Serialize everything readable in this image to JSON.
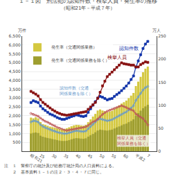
{
  "chart_data": {
    "type": "combo",
    "title": "１－１図　刑法犯の認知件数・検挙人員・発生率の推移",
    "subtitle": "（昭和21年－平成７年）",
    "ylabel": "万件",
    "y2label": "万人",
    "notes": [
      "注　１　警察庁の統計及び総務庁統計局の人口資料による。",
      "　　２　基本資料１－１の注２・３・４・７に同じ。"
    ],
    "categories": [
      "昭和21",
      null,
      null,
      null,
      "25",
      null,
      null,
      null,
      null,
      "30",
      null,
      null,
      null,
      null,
      "35",
      null,
      null,
      null,
      null,
      "40",
      null,
      null,
      null,
      null,
      "45",
      null,
      null,
      null,
      null,
      "50",
      null,
      null,
      null,
      null,
      "55",
      null,
      null,
      null,
      null,
      "60",
      null,
      null,
      null,
      null,
      "平成2",
      null,
      null,
      null,
      null,
      "7"
    ],
    "series": [
      {
        "name": "発生率（交通関係業務）",
        "type": "bar",
        "color": "#d4c840",
        "values": [
          1900,
          1860,
          1920,
          1860,
          1650,
          1530,
          1490,
          1440,
          1390,
          1360,
          1330,
          1290,
          1260,
          1240,
          1250,
          1300,
          1350,
          1410,
          1460,
          1490,
          1480,
          1460,
          1440,
          1490,
          1640,
          1800,
          1960,
          2110,
          2300,
          2360,
          2300,
          2260,
          2200,
          2240,
          2280,
          2380,
          2480,
          2590,
          2690,
          2770,
          2860,
          3000,
          3140,
          3290,
          3680,
          3930,
          4200,
          4460,
          4660,
          4780
        ]
      },
      {
        "name": "発生率（交通関係業務を除く）",
        "type": "bar",
        "color": "#9e9e30",
        "values": [
          1000,
          1040,
          1060,
          1030,
          880,
          820,
          780,
          750,
          720,
          690,
          660,
          630,
          600,
          580,
          580,
          595,
          625,
          675,
          715,
          740,
          730,
          715,
          700,
          730,
          825,
          905,
          975,
          1070,
          1170,
          1220,
          1200,
          1180,
          1165,
          1195,
          1220,
          1285,
          1345,
          1400,
          1460,
          1520,
          1560,
          1640,
          1710,
          1800,
          2010,
          2150,
          2290,
          2430,
          2530,
          2620
        ]
      },
      {
        "name": "認知件数",
        "type": "line",
        "color": "#1133aa",
        "marker": "square",
        "values": [
          2750,
          2850,
          2800,
          2750,
          2550,
          2400,
          2300,
          2200,
          2100,
          2050,
          1980,
          1900,
          1850,
          1800,
          1800,
          1850,
          1900,
          1960,
          2000,
          2050,
          2020,
          1980,
          1960,
          2000,
          2200,
          2400,
          2600,
          2800,
          3000,
          3100,
          3050,
          2980,
          2900,
          2950,
          2980,
          3100,
          3200,
          3300,
          3420,
          3550,
          3680,
          3850,
          4050,
          4250,
          4750,
          5100,
          5450,
          5800,
          6050,
          6200
        ]
      },
      {
        "name": "認知件数（交通\n関係業務を除く）",
        "type": "line",
        "color": "#6699cc",
        "marker": "circle",
        "values": [
          1650,
          1720,
          1700,
          1650,
          1500,
          1400,
          1330,
          1280,
          1220,
          1170,
          1130,
          1080,
          1040,
          1010,
          990,
          1000,
          1040,
          1090,
          1130,
          1160,
          1140,
          1120,
          1110,
          1140,
          1280,
          1400,
          1520,
          1650,
          1780,
          1830,
          1800,
          1760,
          1720,
          1750,
          1780,
          1860,
          1930,
          2010,
          2080,
          2160,
          2220,
          2330,
          2440,
          2570,
          2870,
          3070,
          3270,
          3460,
          3590,
          3660
        ]
      },
      {
        "name": "検挙人員",
        "type": "line",
        "color": "#881111",
        "marker": "square",
        "axis": "y2",
        "values": [
          130,
          127,
          124,
          120,
          112,
          106,
          102,
          98,
          94,
          90,
          87,
          84,
          82,
          80,
          79,
          78,
          79,
          80,
          81,
          82,
          83,
          84,
          85,
          86,
          91,
          96,
          101,
          106,
          115,
          128,
          142,
          152,
          162,
          167,
          172,
          177,
          182,
          187,
          192,
          190,
          189,
          188,
          187,
          187,
          183,
          183,
          188,
          191,
          194,
          193
        ]
      },
      {
        "name": "検挙人員（交通\n関係業務を除く）",
        "type": "line",
        "color": "#bb5555",
        "marker": "circle",
        "axis": "y2",
        "values": [
          82,
          80,
          78,
          76,
          72,
          68,
          65,
          63,
          60,
          57,
          55,
          52,
          50,
          48,
          46,
          45,
          46,
          47,
          48,
          49,
          50,
          51,
          52,
          53,
          56,
          60,
          64,
          66,
          70,
          75,
          80,
          84,
          87,
          89,
          91,
          93,
          95,
          97,
          99,
          97,
          95,
          92,
          90,
          88,
          81,
          77,
          74,
          71,
          65,
          57
        ]
      }
    ],
    "ylim": [
      0,
      6500
    ],
    "yticks": [
      500,
      {
        "value": 1000,
        "label": "1,000"
      },
      {
        "value": 1500,
        "label": "1,500"
      },
      {
        "value": 2000,
        "label": "2,000"
      },
      {
        "value": 2500,
        "label": "2,500"
      },
      {
        "value": 3000,
        "label": "3,000"
      },
      {
        "value": 3500,
        "label": "3,500"
      },
      {
        "value": 4000,
        "label": "4,000"
      },
      {
        "value": 4500,
        "label": "4,500"
      },
      {
        "value": 5000,
        "label": "5,000"
      },
      {
        "value": 5500,
        "label": "5,500"
      },
      {
        "value": 6000,
        "label": "6,000"
      },
      {
        "value": 6500,
        "label": "6,500"
      }
    ],
    "y2lim": [
      0,
      250
    ],
    "y2ticks": [
      0,
      50,
      100,
      150,
      200,
      250
    ],
    "grid": true,
    "legend": "upper left",
    "stacked": false
  }
}
